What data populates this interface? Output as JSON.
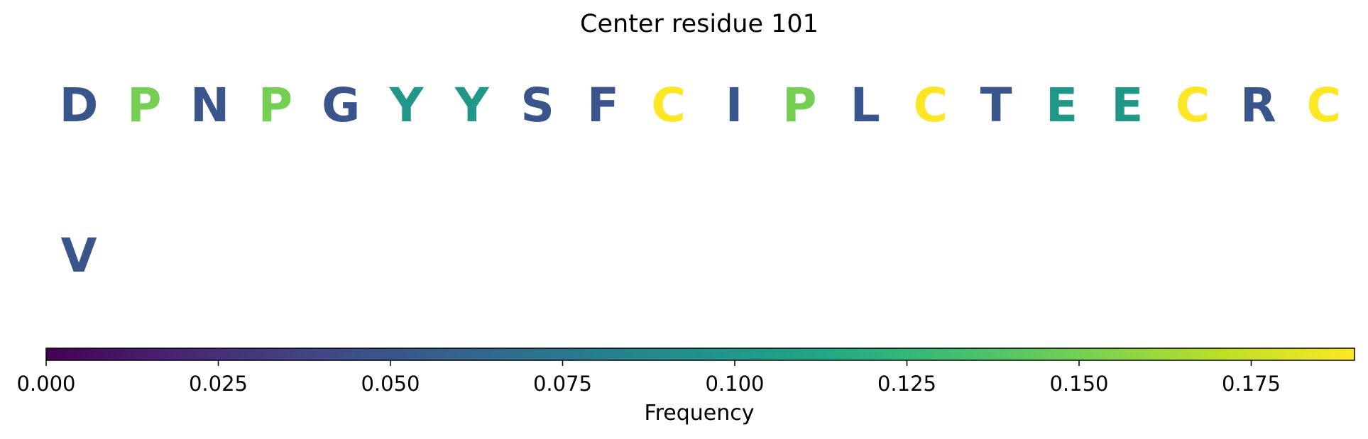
{
  "chart_data": {
    "type": "sequence-logo",
    "title": "Center residue 101",
    "residues": [
      {
        "letter": "D",
        "frequency": 0.05
      },
      {
        "letter": "P",
        "frequency": 0.15
      },
      {
        "letter": "N",
        "frequency": 0.05
      },
      {
        "letter": "P",
        "frequency": 0.15
      },
      {
        "letter": "G",
        "frequency": 0.05
      },
      {
        "letter": "Y",
        "frequency": 0.1
      },
      {
        "letter": "Y",
        "frequency": 0.1
      },
      {
        "letter": "S",
        "frequency": 0.05
      },
      {
        "letter": "F",
        "frequency": 0.05
      },
      {
        "letter": "C",
        "frequency": 0.19
      },
      {
        "letter": "I",
        "frequency": 0.05
      },
      {
        "letter": "P",
        "frequency": 0.15
      },
      {
        "letter": "L",
        "frequency": 0.05
      },
      {
        "letter": "C",
        "frequency": 0.19
      },
      {
        "letter": "T",
        "frequency": 0.05
      },
      {
        "letter": "E",
        "frequency": 0.1
      },
      {
        "letter": "E",
        "frequency": 0.1
      },
      {
        "letter": "C",
        "frequency": 0.19
      },
      {
        "letter": "R",
        "frequency": 0.05
      },
      {
        "letter": "C",
        "frequency": 0.19
      },
      {
        "letter": "V",
        "frequency": 0.05
      }
    ],
    "colorbar": {
      "label": "Frequency",
      "range": [
        0,
        0.19
      ],
      "ticks": [
        0,
        0.025,
        0.05,
        0.075,
        0.1,
        0.125,
        0.15,
        0.175
      ],
      "tick_labels": [
        "0.000",
        "0.025",
        "0.050",
        "0.075",
        "0.100",
        "0.125",
        "0.150",
        "0.175"
      ],
      "colormap": "viridis"
    }
  }
}
